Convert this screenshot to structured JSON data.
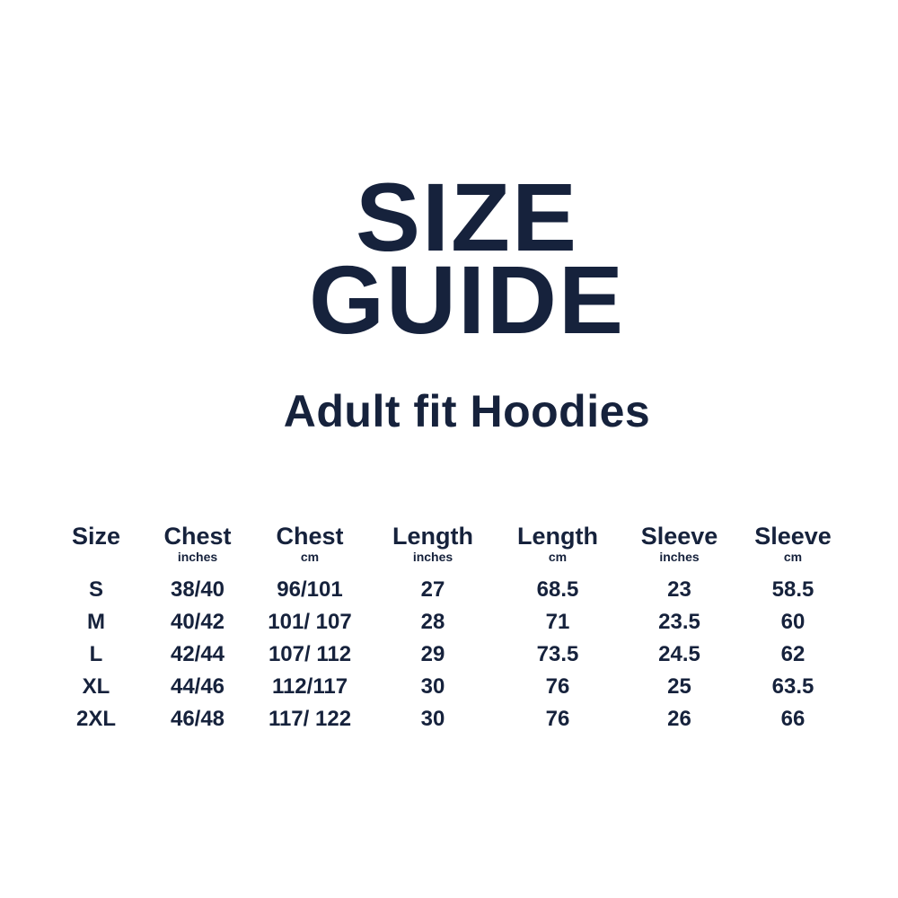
{
  "colors": {
    "text_navy": "#16223C",
    "background": "#FFFFFF"
  },
  "header": {
    "title_line1": "SIZE",
    "title_line2": "GUIDE",
    "subtitle": "Adult fit Hoodies"
  },
  "table": {
    "columns": [
      {
        "label": "Size",
        "unit": ""
      },
      {
        "label": "Chest",
        "unit": "inches"
      },
      {
        "label": "Chest",
        "unit": "cm"
      },
      {
        "label": "Length",
        "unit": "inches"
      },
      {
        "label": "Length",
        "unit": "cm"
      },
      {
        "label": "Sleeve",
        "unit": "inches"
      },
      {
        "label": "Sleeve",
        "unit": "cm"
      }
    ],
    "rows": [
      [
        "S",
        "38/40",
        "96/101",
        "27",
        "68.5",
        "23",
        "58.5"
      ],
      [
        "M",
        "40/42",
        "101/ 107",
        "28",
        "71",
        "23.5",
        "60"
      ],
      [
        "L",
        "42/44",
        "107/ 112",
        "29",
        "73.5",
        "24.5",
        "62"
      ],
      [
        "XL",
        "44/46",
        "112/117",
        "30",
        "76",
        "25",
        "63.5"
      ],
      [
        "2XL",
        "46/48",
        "117/ 122",
        "30",
        "76",
        "26",
        "66"
      ]
    ]
  }
}
